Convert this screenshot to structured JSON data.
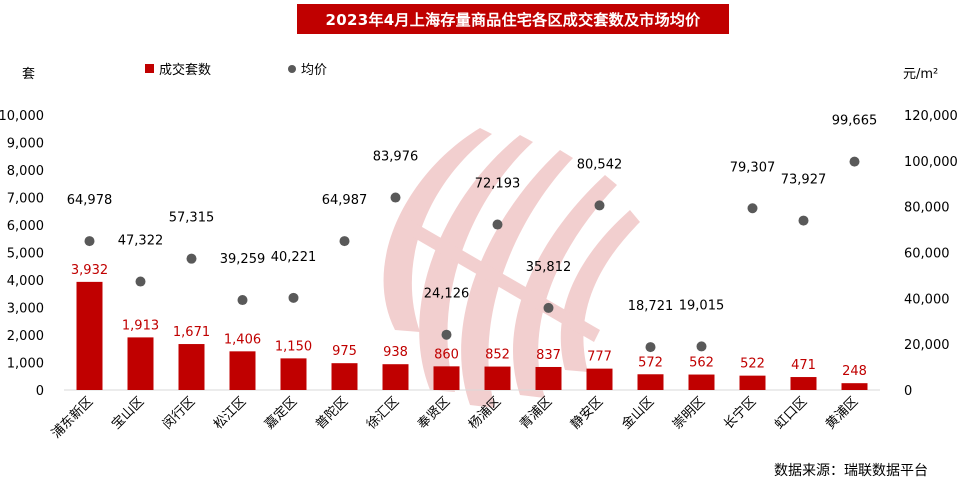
{
  "title": "2023年4月上海存量商品住宅各区成交套数及市场均价",
  "left_unit": "套",
  "right_unit": "元/m²",
  "source": "数据来源：瑞联数据平台",
  "colors": {
    "bar": "#c00000",
    "dot": "#595959",
    "title_bg": "#c00000"
  },
  "chart_data": {
    "type": "bar",
    "categories": [
      "浦东新区",
      "宝山区",
      "闵行区",
      "松江区",
      "嘉定区",
      "普陀区",
      "徐汇区",
      "奉贤区",
      "杨浦区",
      "青浦区",
      "静安区",
      "金山区",
      "崇明区",
      "长宁区",
      "虹口区",
      "黄浦区"
    ],
    "series": [
      {
        "name": "成交套数",
        "type": "bar",
        "axis": "left",
        "values": [
          3932,
          1913,
          1671,
          1406,
          1150,
          975,
          938,
          860,
          852,
          837,
          777,
          572,
          562,
          522,
          471,
          248
        ],
        "labels": [
          "3,932",
          "1,913",
          "1,671",
          "1,406",
          "1,150",
          "975",
          "938",
          "860",
          "852",
          "837",
          "777",
          "572",
          "562",
          "522",
          "471",
          "248"
        ]
      },
      {
        "name": "均价",
        "type": "scatter",
        "axis": "right",
        "values": [
          64978,
          47322,
          57315,
          39259,
          40221,
          64987,
          83976,
          24126,
          72193,
          35812,
          80542,
          18721,
          19015,
          79307,
          73927,
          99665
        ],
        "labels": [
          "64,978",
          "47,322",
          "57,315",
          "39,259",
          "40,221",
          "64,987",
          "83,976",
          "24,126",
          "72,193",
          "35,812",
          "80,542",
          "18,721",
          "19,015",
          "79,307",
          "73,927",
          "99,665"
        ]
      }
    ],
    "y_left": {
      "min": 0,
      "max": 10000,
      "ticks": [
        "0",
        "1,000",
        "2,000",
        "3,000",
        "4,000",
        "5,000",
        "6,000",
        "7,000",
        "8,000",
        "9,000",
        "10,000"
      ]
    },
    "y_right": {
      "min": 0,
      "max": 120000,
      "ticks": [
        "0",
        "20,000",
        "40,000",
        "60,000",
        "80,000",
        "100,000",
        "120,000"
      ]
    },
    "legend": [
      "成交套数",
      "均价"
    ],
    "legend_position": "top",
    "grid": false
  }
}
